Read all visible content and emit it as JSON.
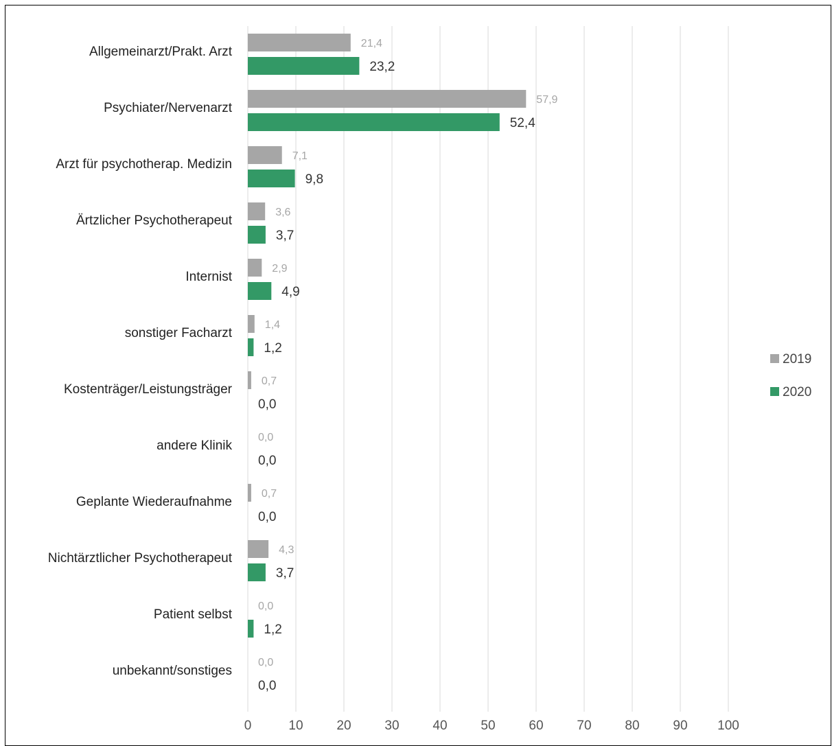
{
  "chart_data": {
    "type": "bar",
    "orientation": "horizontal",
    "categories": [
      "Allgemeinarzt/Prakt. Arzt",
      "Psychiater/Nervenarzt",
      "Arzt für psychotherap. Medizin",
      "Ärtzlicher Psychotherapeut",
      "Internist",
      "sonstiger Facharzt",
      "Kostenträger/Leistungsträger",
      "andere Klinik",
      "Geplante Wiederaufnahme",
      "Nichtärztlicher Psychotherapeut",
      "Patient selbst",
      "unbekannt/sonstiges"
    ],
    "series": [
      {
        "name": "2019",
        "color": "#a6a6a6",
        "values": [
          21.4,
          57.9,
          7.1,
          3.6,
          2.9,
          1.4,
          0.7,
          0.0,
          0.7,
          4.3,
          0.0,
          0.0
        ],
        "labels": [
          "21,4",
          "57,9",
          "7,1",
          "3,6",
          "2,9",
          "1,4",
          "0,7",
          "0,0",
          "0,7",
          "4,3",
          "0,0",
          "0,0"
        ]
      },
      {
        "name": "2020",
        "color": "#339966",
        "values": [
          23.2,
          52.4,
          9.8,
          3.7,
          4.9,
          1.2,
          0.0,
          0.0,
          0.0,
          3.7,
          1.2,
          0.0
        ],
        "labels": [
          "23,2",
          "52,4",
          "9,8",
          "3,7",
          "4,9",
          "1,2",
          "0,0",
          "0,0",
          "0,0",
          "3,7",
          "1,2",
          "0,0"
        ]
      }
    ],
    "xlim": [
      0,
      100
    ],
    "xticks": [
      "0",
      "10",
      "20",
      "30",
      "40",
      "50",
      "60",
      "70",
      "80",
      "90",
      "100"
    ],
    "grid": true,
    "legend_position": "right",
    "title": "",
    "xlabel": "",
    "ylabel": ""
  }
}
